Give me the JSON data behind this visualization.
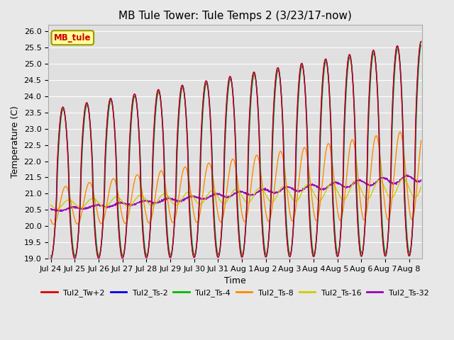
{
  "title": "MB Tule Tower: Tule Temps 2 (3/23/17-now)",
  "xlabel": "Time",
  "ylabel": "Temperature (C)",
  "ylim": [
    19.0,
    26.2
  ],
  "yticks": [
    19.0,
    19.5,
    20.0,
    20.5,
    21.0,
    21.5,
    22.0,
    22.5,
    23.0,
    23.5,
    24.0,
    24.5,
    25.0,
    25.5,
    26.0
  ],
  "legend_label": "MB_tule",
  "series_labels": [
    "Tul2_Tw+2",
    "Tul2_Ts-2",
    "Tul2_Ts-4",
    "Tul2_Ts-8",
    "Tul2_Ts-16",
    "Tul2_Ts-32"
  ],
  "series_colors": [
    "#dd0000",
    "#0000ee",
    "#00bb00",
    "#ff8800",
    "#cccc00",
    "#9900bb"
  ],
  "background_color": "#e8e8e8",
  "plot_bg_color": "#e0e0e0",
  "grid_color": "#ffffff",
  "xtick_labels": [
    "Jul 24",
    "Jul 25",
    "Jul 26",
    "Jul 27",
    "Jul 28",
    "Jul 29",
    "Jul 30",
    "Jul 31",
    "Aug 1",
    "Aug 2",
    "Aug 3",
    "Aug 4",
    "Aug 5",
    "Aug 6",
    "Aug 7",
    "Aug 8"
  ],
  "title_fontsize": 11,
  "axis_fontsize": 9,
  "tick_fontsize": 8
}
